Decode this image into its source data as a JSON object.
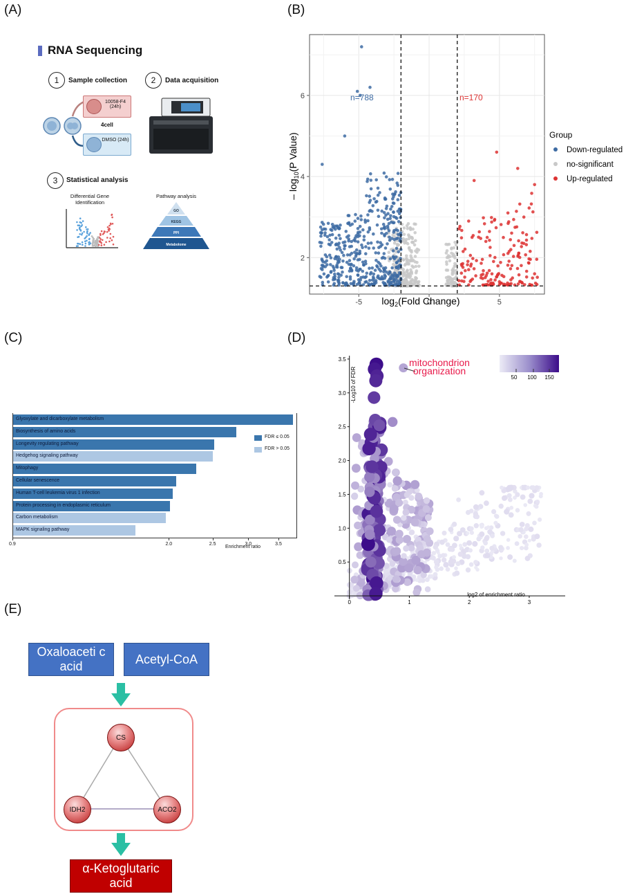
{
  "panels": {
    "A": "(A)",
    "B": "(B)",
    "C": "(C)",
    "D": "(D)",
    "E": "(E)"
  },
  "panelA": {
    "title": "RNA Sequencing",
    "step1": {
      "num": "1",
      "label": "Sample collection"
    },
    "step2": {
      "num": "2",
      "label": "Data acquisition"
    },
    "step3": {
      "num": "3",
      "label": "Statistical analysis"
    },
    "treat1": "10058-F4 (24h)",
    "treat2": "DMSO (24h)",
    "cell_label": "4cell",
    "dge_label": "Differential Gene Identification",
    "pathway_label": "Pathway analysis",
    "pyramid": [
      "GO",
      "KEGG",
      "PPI",
      "Metabolome"
    ],
    "colors": {
      "accent": "#5b6bbf",
      "pyramid": [
        "#cfe0ef",
        "#9fc4e4",
        "#3d78b8",
        "#1f5690"
      ]
    }
  },
  "panelB": {
    "chart_data": {
      "type": "scatter",
      "title": "",
      "xlabel": "log2(Fold Change)",
      "ylabel": "-log10(P Value)",
      "xlim": [
        -8.5,
        8.2
      ],
      "ylim": [
        1.1,
        7.5
      ],
      "x_ticks": [
        -5,
        0,
        5
      ],
      "y_ticks": [
        2,
        4,
        6
      ],
      "thresholds": {
        "x": [
          -2,
          2
        ],
        "y": 1.3
      },
      "legend_title": "Group",
      "series": [
        {
          "name": "Down-regulated",
          "color": "#3d6ba3",
          "count_label": "n=788",
          "count": 788
        },
        {
          "name": "no-significant",
          "color": "#c8c8c8"
        },
        {
          "name": "Up-regulated",
          "color": "#dd3333",
          "count_label": "n=170",
          "count": 170
        }
      ],
      "highlight_points": [
        {
          "x": -4.8,
          "y": 7.2
        },
        {
          "x": -5.1,
          "y": 6.1
        },
        {
          "x": -4.2,
          "y": 6.2
        },
        {
          "x": -4.9,
          "y": 6.0
        },
        {
          "x": -6.0,
          "y": 5.0
        },
        {
          "x": -7.6,
          "y": 4.3
        },
        {
          "x": 4.8,
          "y": 4.6
        },
        {
          "x": 6.3,
          "y": 4.2
        },
        {
          "x": 3.2,
          "y": 3.9
        },
        {
          "x": 7.5,
          "y": 3.8
        },
        {
          "x": 5.6,
          "y": 3.1
        }
      ]
    }
  },
  "panelC": {
    "chart_data": {
      "type": "bar",
      "orientation": "horizontal",
      "xlabel": "Enrichment ratio",
      "x_scale": "log",
      "x_ticks": [
        0.9,
        2.0,
        2.5,
        3.0,
        3.5
      ],
      "x_tick_labels": [
        "0.9",
        "2.0",
        "2.5",
        "3.0",
        "3.5"
      ],
      "categories": [
        "Glyoxylate and dicarboxylate metabolism",
        "Biosynthesis of amino acids",
        "Longevity regulating pathway",
        "Hedgehog signaling pathway",
        "Mitophagy",
        "Cellular senescence",
        "Human T-cell leukemia virus 1 infection",
        "Protein processing in endoplasmic reticulum",
        "Carbon metabolism",
        "MAPK signaling pathway"
      ],
      "values": [
        3.75,
        2.81,
        2.51,
        2.49,
        2.29,
        2.07,
        2.03,
        2.0,
        1.96,
        1.68
      ],
      "significant": [
        true,
        true,
        true,
        false,
        true,
        true,
        true,
        true,
        false,
        false
      ],
      "legend": [
        {
          "label": "FDR ≤ 0.05",
          "color": "#3a76ad"
        },
        {
          "label": "FDR > 0.05",
          "color": "#adc7e3"
        }
      ]
    }
  },
  "panelD": {
    "chart_data": {
      "type": "scatter",
      "xlabel": "log2 of enrichment ratio",
      "ylabel": "-Log10 of FDR",
      "xlim": [
        -0.25,
        3.6
      ],
      "ylim": [
        -0.05,
        3.55
      ],
      "x_ticks": [
        0,
        1,
        2,
        3
      ],
      "y_ticks": [
        0.5,
        1.0,
        1.5,
        2.0,
        2.5,
        3.0,
        3.5
      ],
      "y_tick_labels": [
        "0.5",
        "1.0",
        "1.5",
        "2.0",
        "2.5",
        "3.0",
        "3.5"
      ],
      "colorbar": {
        "ticks": [
          "50",
          "100",
          "150"
        ],
        "min": 0,
        "max": 190,
        "low": "#ecebf6",
        "high": "#3c0c8a"
      },
      "annotation": {
        "text_line1": "mitochondrion",
        "text_line2": "organization",
        "x": 0.9,
        "y": 3.37,
        "color": "#e8194a"
      },
      "highlight_points": [
        {
          "x": 0.45,
          "y": 3.42,
          "size": 190
        },
        {
          "x": 0.42,
          "y": 3.35,
          "size": 180
        },
        {
          "x": 0.46,
          "y": 3.25,
          "size": 170
        },
        {
          "x": 0.44,
          "y": 3.18,
          "size": 165
        },
        {
          "x": 0.41,
          "y": 2.93,
          "size": 150
        },
        {
          "x": 0.43,
          "y": 2.6,
          "size": 140
        },
        {
          "x": 0.5,
          "y": 2.52,
          "size": 130
        },
        {
          "x": 0.72,
          "y": 2.57,
          "size": 80
        },
        {
          "x": 0.9,
          "y": 3.37,
          "size": 60
        }
      ]
    }
  },
  "panelE": {
    "box1": "Oxaloaceti c acid",
    "box2": "Acetyl-CoA",
    "node_cs": "CS",
    "node_idh2": "IDH2",
    "node_aco2": "ACO2",
    "result": "α-Ketoglutaric acid",
    "colors": {
      "arrow": "#2bbfa4",
      "frame": "#f08a8a",
      "result_bg": "#c00000"
    }
  }
}
